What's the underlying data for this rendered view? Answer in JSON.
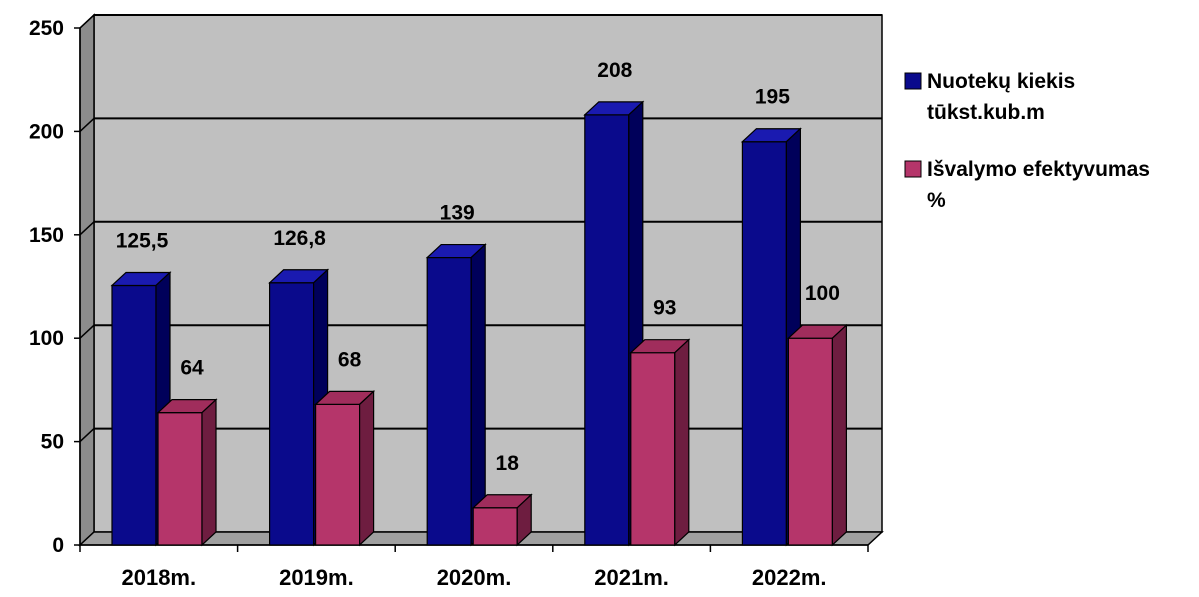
{
  "chart_data": {
    "type": "bar",
    "categories": [
      "2018m.",
      "2019m.",
      "2020m.",
      "2021m.",
      "2022m."
    ],
    "series": [
      {
        "name": "Nuotekų kiekis tūkst.kub.m",
        "legend_lines": [
          "Nuotekų kiekis",
          "tūkst.kub.m"
        ],
        "values": [
          125.5,
          126.8,
          139,
          208,
          195
        ],
        "data_labels": [
          "125,5",
          "126,8",
          "139",
          "208",
          "195"
        ],
        "color": "#0a0a8c",
        "side_color": "#00005a",
        "top_color": "#1a1ab0"
      },
      {
        "name": "Išvalymo efektyvumas %",
        "legend_lines": [
          "Išvalymo efektyvumas",
          "%"
        ],
        "values": [
          64,
          68,
          18,
          93,
          100
        ],
        "data_labels": [
          "64",
          "68",
          "18",
          "93",
          "100"
        ],
        "color": "#b5356a",
        "side_color": "#6e1d40",
        "top_color": "#a02d5c"
      }
    ],
    "y_ticks": [
      "0",
      "50",
      "100",
      "150",
      "200",
      "250"
    ],
    "ylim": [
      0,
      250
    ],
    "grid": true,
    "style": "3d-bar",
    "legend_position": "right",
    "wall_color": "#c0c0c0"
  }
}
